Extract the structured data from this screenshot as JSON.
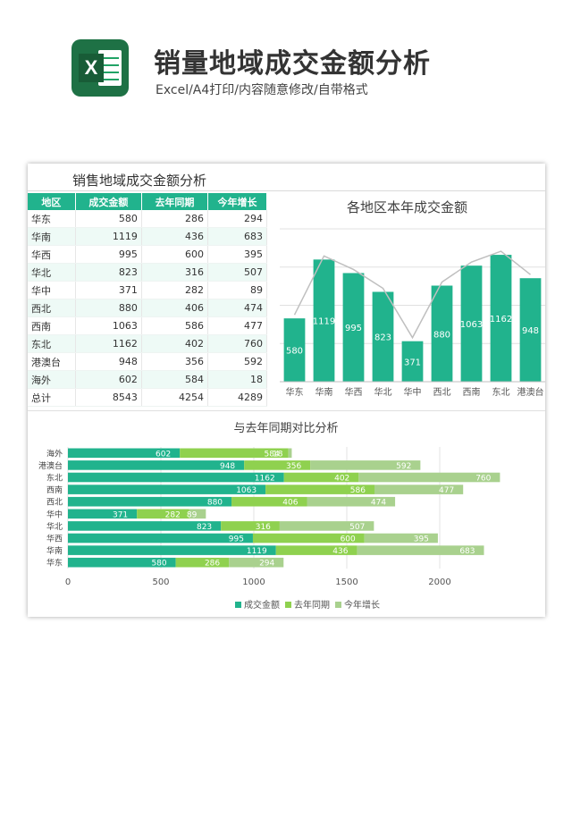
{
  "header": {
    "title": "销量地域成交金额分析",
    "subtitle": "Excel/A4打印/内容随意修改/自带格式",
    "logo_letter": "X",
    "logo_icon": "excel-icon"
  },
  "sheet": {
    "title": "销售地域成交金额分析",
    "columns": [
      "地区",
      "成交金额",
      "去年同期",
      "今年增长"
    ],
    "rows": [
      [
        "华东",
        "580",
        "286",
        "294"
      ],
      [
        "华南",
        "1119",
        "436",
        "683"
      ],
      [
        "华西",
        "995",
        "600",
        "395"
      ],
      [
        "华北",
        "823",
        "316",
        "507"
      ],
      [
        "华中",
        "371",
        "282",
        "89"
      ],
      [
        "西北",
        "880",
        "406",
        "474"
      ],
      [
        "西南",
        "1063",
        "586",
        "477"
      ],
      [
        "东北",
        "1162",
        "402",
        "760"
      ],
      [
        "港澳台",
        "948",
        "356",
        "592"
      ],
      [
        "海外",
        "602",
        "584",
        "18"
      ],
      [
        "总计",
        "8543",
        "4254",
        "4289"
      ]
    ]
  },
  "colors": {
    "primary": "#21b38d",
    "light_green": "#8fd14f",
    "pale_green": "#a9d18e",
    "line_gray": "#bfbfbf"
  },
  "chart_data": [
    {
      "type": "bar",
      "title": "各地区本年成交金额",
      "categories": [
        "华东",
        "华南",
        "华西",
        "华北",
        "华中",
        "西北",
        "西南",
        "东北",
        "港澳台"
      ],
      "values": [
        580,
        1119,
        995,
        823,
        371,
        880,
        1063,
        1162,
        948
      ],
      "overlay": "line",
      "grid": true,
      "legend": "none"
    },
    {
      "type": "bar",
      "orientation": "horizontal",
      "stacked": true,
      "title": "与去年同期对比分析",
      "categories": [
        "华东",
        "华南",
        "华西",
        "华北",
        "华中",
        "西北",
        "西南",
        "东北",
        "港澳台",
        "海外"
      ],
      "series": [
        {
          "name": "成交金额",
          "values": [
            580,
            1119,
            995,
            823,
            371,
            880,
            1063,
            1162,
            948,
            602
          ]
        },
        {
          "name": "去年同期",
          "values": [
            286,
            436,
            600,
            316,
            282,
            406,
            586,
            402,
            356,
            584
          ]
        },
        {
          "name": "今年增长",
          "values": [
            294,
            683,
            395,
            507,
            89,
            474,
            477,
            760,
            592,
            18
          ]
        }
      ],
      "xlim": [
        0,
        2500
      ],
      "xticks": [
        0,
        500,
        1000,
        1500,
        2000
      ],
      "grid": true,
      "legend": "bottom"
    }
  ]
}
